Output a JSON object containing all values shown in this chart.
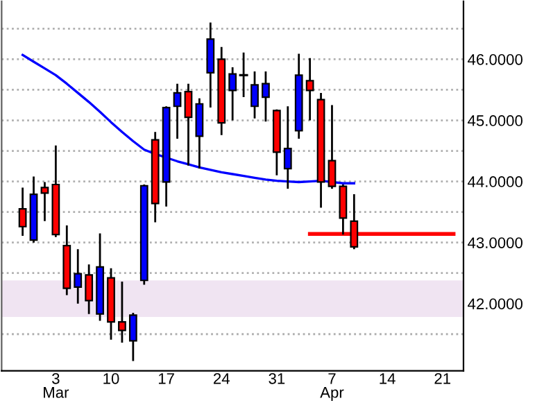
{
  "chart_data": {
    "type": "candlestick",
    "categories": [
      null,
      null,
      null,
      "3\nMar",
      null,
      null,
      null,
      null,
      "10",
      null,
      null,
      null,
      null,
      "17",
      null,
      null,
      null,
      null,
      "24",
      null,
      null,
      null,
      null,
      "31",
      null,
      null,
      null,
      null,
      "7\nApr",
      null,
      null,
      null,
      null,
      "14",
      null,
      null,
      null,
      null,
      "21",
      null
    ],
    "ohlc": [
      [
        43.55,
        43.9,
        43.11,
        43.26
      ],
      [
        43.04,
        44.08,
        43.0,
        43.79
      ],
      [
        43.9,
        43.99,
        43.35,
        43.81
      ],
      [
        43.95,
        44.59,
        43.09,
        43.13
      ],
      [
        42.95,
        43.28,
        42.14,
        42.25
      ],
      [
        42.27,
        42.89,
        42.0,
        42.49
      ],
      [
        42.47,
        42.64,
        41.83,
        42.05
      ],
      [
        41.83,
        43.15,
        41.72,
        42.6
      ],
      [
        42.42,
        42.58,
        41.41,
        41.7
      ],
      [
        41.7,
        42.36,
        41.36,
        41.56
      ],
      [
        41.39,
        41.85,
        41.06,
        41.81
      ],
      [
        42.38,
        43.95,
        42.31,
        43.93
      ],
      [
        44.68,
        44.81,
        43.33,
        43.64
      ],
      [
        43.99,
        45.23,
        43.59,
        45.21
      ],
      [
        45.23,
        45.6,
        44.7,
        45.45
      ],
      [
        45.47,
        45.6,
        44.26,
        45.05
      ],
      [
        44.74,
        45.36,
        44.21,
        45.27
      ],
      [
        45.78,
        46.6,
        45.21,
        46.33
      ],
      [
        46.0,
        46.2,
        44.76,
        44.96
      ],
      [
        45.49,
        45.87,
        45.0,
        45.76
      ],
      [
        45.74,
        46.11,
        45.38,
        45.74
      ],
      [
        45.23,
        45.8,
        45.03,
        45.58
      ],
      [
        45.38,
        45.8,
        44.98,
        45.6
      ],
      [
        45.16,
        45.18,
        44.1,
        44.48
      ],
      [
        44.21,
        45.23,
        43.88,
        44.54
      ],
      [
        44.83,
        46.09,
        44.7,
        45.74
      ],
      [
        45.65,
        46.02,
        45.0,
        45.49
      ],
      [
        45.34,
        45.45,
        43.57,
        43.99
      ],
      [
        44.34,
        45.25,
        43.88,
        43.92
      ],
      [
        43.92,
        43.95,
        43.13,
        43.4
      ],
      [
        43.35,
        43.79,
        42.89,
        42.93
      ],
      null,
      null,
      null,
      null,
      null,
      null,
      null,
      null,
      null
    ],
    "colors": [
      "#ff0000",
      "#0000ff",
      "#ff0000",
      "#ff0000",
      "#ff0000",
      "#0000ff",
      "#ff0000",
      "#0000ff",
      "#ff0000",
      "#ff0000",
      "#0000ff",
      "#0000ff",
      "#ff0000",
      "#0000ff",
      "#0000ff",
      "#ff0000",
      "#0000ff",
      "#0000ff",
      "#ff0000",
      "#0000ff",
      "#000000",
      "#0000ff",
      "#0000ff",
      "#ff0000",
      "#0000ff",
      "#0000ff",
      "#ff0000",
      "#ff0000",
      "#ff0000",
      "#ff0000",
      "#ff0000",
      null,
      null,
      null,
      null,
      null,
      null,
      null,
      null,
      null
    ],
    "series": [
      {
        "type": "line",
        "color": "#0000ff",
        "values": [
          46.07,
          45.96,
          45.85,
          45.74,
          45.6,
          45.45,
          45.3,
          45.14,
          44.97,
          44.81,
          44.66,
          44.52,
          44.45,
          44.39,
          44.33,
          44.28,
          44.23,
          44.19,
          44.15,
          44.12,
          44.09,
          44.06,
          44.03,
          44.01,
          44.0,
          43.99,
          44.0,
          44.01,
          43.99,
          43.97,
          43.97,
          null,
          null,
          null,
          null,
          null,
          null,
          null,
          null,
          null
        ]
      },
      {
        "type": "line",
        "color": "#ff0000",
        "values": [
          null,
          null,
          null,
          null,
          null,
          null,
          null,
          null,
          null,
          null,
          null,
          null,
          null,
          null,
          null,
          null,
          null,
          null,
          null,
          null,
          null,
          null,
          null,
          null,
          null,
          null,
          43.14,
          43.14,
          43.14,
          43.14,
          43.14,
          43.14,
          43.14,
          43.14,
          43.14,
          43.14,
          43.14,
          43.14,
          43.14,
          43.14
        ]
      }
    ],
    "ylim": [
      40.9,
      46.95
    ],
    "yticks": [
      {
        "value": 41.5,
        "label": null
      },
      {
        "value": 42,
        "label": "42.0000"
      },
      {
        "value": 42.5,
        "label": null
      },
      {
        "value": 43,
        "label": "43.0000"
      },
      {
        "value": 43.5,
        "label": null
      },
      {
        "value": 44,
        "label": "44.0000"
      },
      {
        "value": 44.5,
        "label": null
      },
      {
        "value": 45,
        "label": "45.0000"
      },
      {
        "value": 45.5,
        "label": null
      },
      {
        "value": 46,
        "label": "46.0000"
      },
      {
        "value": 46.5,
        "label": null
      }
    ],
    "bands": [
      {
        "axis": "y",
        "from": 41.78,
        "to": 42.38,
        "color": "#f0e4f2"
      }
    ],
    "grid": "y"
  }
}
